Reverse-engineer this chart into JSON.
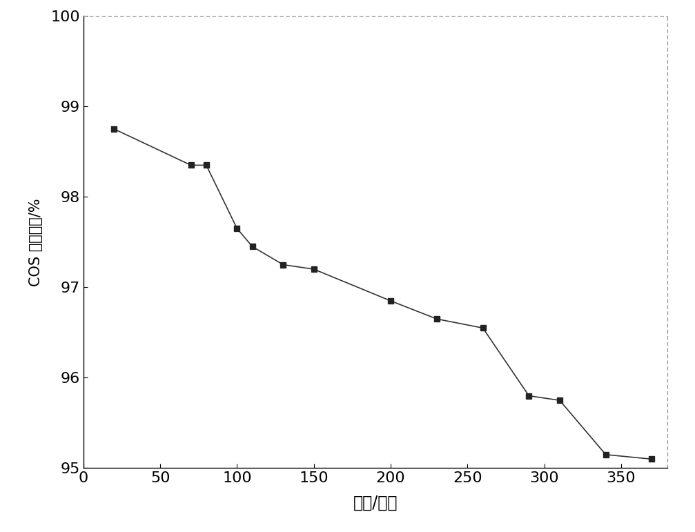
{
  "x": [
    20,
    70,
    80,
    100,
    110,
    130,
    150,
    200,
    230,
    260,
    290,
    310,
    340,
    370
  ],
  "y": [
    98.75,
    98.35,
    98.35,
    97.65,
    97.45,
    97.25,
    97.2,
    96.85,
    96.65,
    96.55,
    95.8,
    95.75,
    95.15,
    95.1
  ],
  "xlabel": "时间/分钟",
  "ylabel": "COS 去除效率/%",
  "xlim": [
    0,
    380
  ],
  "ylim": [
    95,
    100
  ],
  "xticks": [
    0,
    50,
    100,
    150,
    200,
    250,
    300,
    350
  ],
  "yticks": [
    95,
    96,
    97,
    98,
    99,
    100
  ],
  "line_color": "#333333",
  "marker": "s",
  "marker_color": "#222222",
  "marker_size": 6,
  "background_color": "#ffffff"
}
